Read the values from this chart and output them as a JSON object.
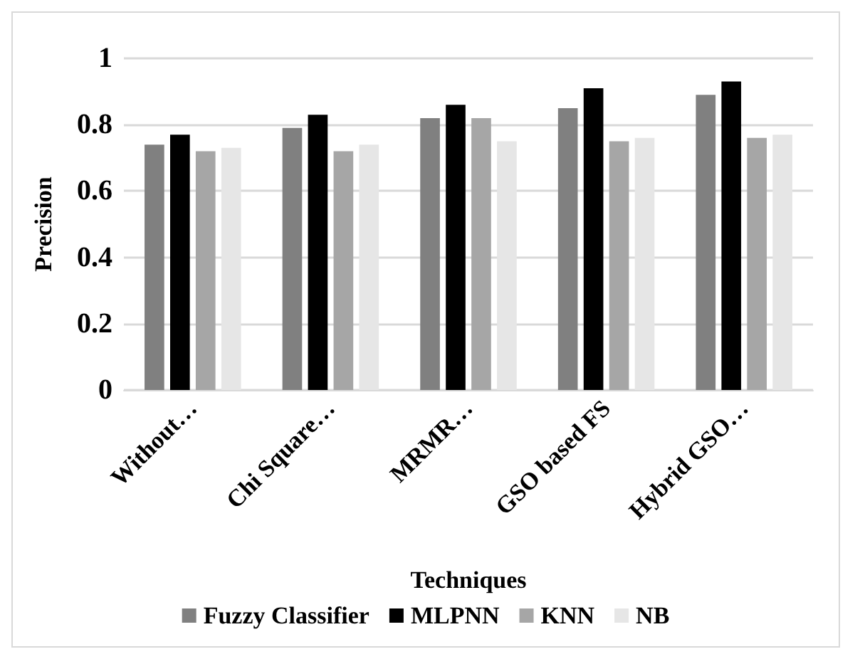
{
  "chart_data": {
    "type": "bar",
    "xlabel": "Techniques",
    "ylabel": "Precision",
    "categories": [
      "Without…",
      "Chi Square…",
      "MRMR…",
      "GSO based FS",
      "Hybrid GSO…"
    ],
    "series": [
      {
        "name": "Fuzzy Classifier",
        "color": "#808080",
        "values": [
          0.74,
          0.79,
          0.82,
          0.85,
          0.89
        ]
      },
      {
        "name": "MLPNN",
        "color": "#000000",
        "values": [
          0.77,
          0.83,
          0.86,
          0.91,
          0.93
        ]
      },
      {
        "name": "KNN",
        "color": "#a6a6a6",
        "values": [
          0.72,
          0.72,
          0.82,
          0.75,
          0.76
        ]
      },
      {
        "name": "NB",
        "color": "#e6e6e6",
        "values": [
          0.73,
          0.74,
          0.75,
          0.76,
          0.77
        ]
      }
    ],
    "ylim": [
      0,
      1
    ],
    "yticks": [
      0,
      0.2,
      0.4,
      0.6,
      0.8,
      1
    ],
    "grid": "y",
    "legend": "bottom"
  }
}
